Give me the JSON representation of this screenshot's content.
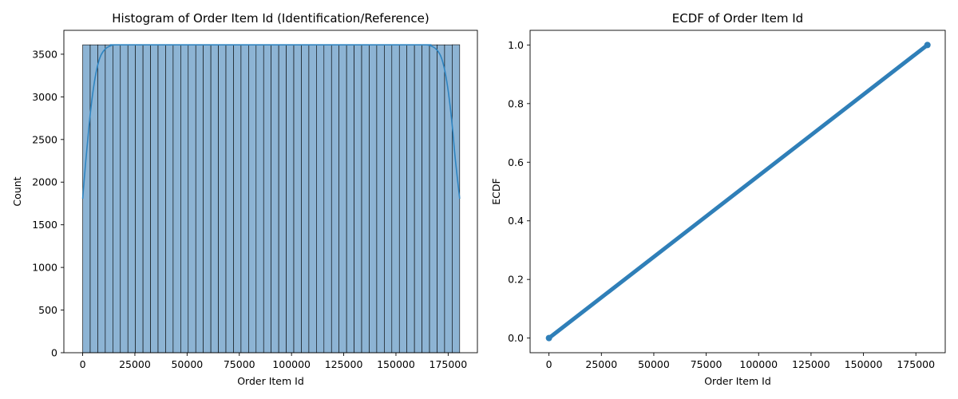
{
  "chart_data": [
    {
      "type": "bar",
      "title": "Histogram of Order Item Id (Identification/Reference)",
      "xlabel": "Order Item Id",
      "ylabel": "Count",
      "xlim": [
        -9000,
        189000
      ],
      "ylim": [
        0,
        3780
      ],
      "xticks": [
        "0",
        "25000",
        "50000",
        "75000",
        "100000",
        "125000",
        "150000",
        "175000"
      ],
      "yticks": [
        "0",
        "500",
        "1000",
        "1500",
        "2000",
        "2500",
        "3000",
        "3500"
      ],
      "bins": {
        "start": 1,
        "end": 180519,
        "count": 50
      },
      "values": [
        3610,
        3610,
        3610,
        3610,
        3610,
        3610,
        3610,
        3610,
        3610,
        3610,
        3610,
        3610,
        3610,
        3610,
        3610,
        3610,
        3610,
        3610,
        3610,
        3610,
        3610,
        3610,
        3610,
        3610,
        3610,
        3610,
        3610,
        3610,
        3610,
        3610,
        3610,
        3610,
        3610,
        3610,
        3610,
        3610,
        3610,
        3610,
        3610,
        3610,
        3610,
        3610,
        3610,
        3610,
        3610,
        3610,
        3610,
        3610,
        3610,
        3611
      ],
      "kde": {
        "x": [
          0,
          1500,
          3000,
          4500,
          6000,
          7500,
          9000,
          11000,
          13000,
          15000,
          20000,
          90000,
          160000,
          165000,
          167000,
          169000,
          171000,
          172500,
          174000,
          175500,
          177000,
          178500,
          180519
        ],
        "y": [
          1805,
          2250,
          2650,
          2980,
          3230,
          3400,
          3500,
          3565,
          3595,
          3608,
          3610,
          3610,
          3610,
          3608,
          3595,
          3565,
          3500,
          3400,
          3230,
          2980,
          2650,
          2250,
          1805
        ]
      },
      "color": "#8db4d4",
      "kde_color": "#2f84c0"
    },
    {
      "type": "scatter",
      "title": "ECDF of Order Item Id",
      "xlabel": "Order Item Id",
      "ylabel": "ECDF",
      "xlim": [
        -9000,
        189000
      ],
      "ylim": [
        -0.05,
        1.05
      ],
      "xticks": [
        "0",
        "25000",
        "50000",
        "75000",
        "100000",
        "125000",
        "150000",
        "175000"
      ],
      "yticks": [
        "0.0",
        "0.2",
        "0.4",
        "0.6",
        "0.8",
        "1.0"
      ],
      "points": {
        "x": [
          1,
          180519
        ],
        "y": [
          0.0,
          1.0
        ]
      },
      "color": "#2f7fb8"
    }
  ]
}
